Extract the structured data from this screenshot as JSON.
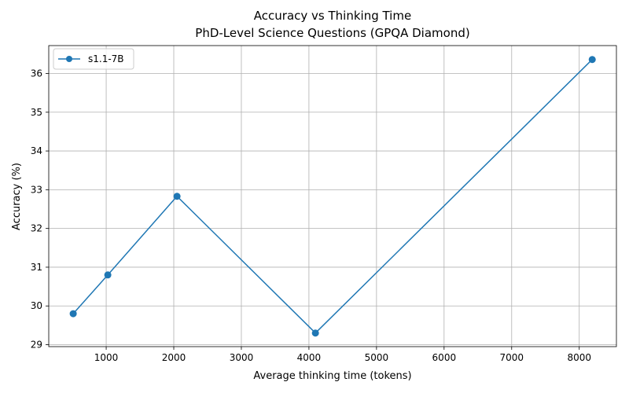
{
  "chart_data": {
    "type": "line",
    "title": "Accuracy vs Thinking Time",
    "subtitle": "PhD-Level Science Questions (GPQA Diamond)",
    "xlabel": "Average thinking time (tokens)",
    "ylabel": "Accuracy (%)",
    "xlim": [
      150,
      8550
    ],
    "ylim": [
      28.95,
      36.72
    ],
    "x_ticks": [
      1000,
      2000,
      3000,
      4000,
      5000,
      6000,
      7000,
      8000
    ],
    "y_ticks": [
      29,
      30,
      31,
      32,
      33,
      34,
      35,
      36
    ],
    "grid": true,
    "legend_position": "top-left",
    "series": [
      {
        "name": "s1.1-7B",
        "color": "#1f77b4",
        "marker": "circle",
        "x": [
          512,
          1024,
          2048,
          4096,
          8192
        ],
        "y": [
          29.8,
          30.8,
          32.83,
          29.3,
          36.36
        ]
      }
    ]
  }
}
